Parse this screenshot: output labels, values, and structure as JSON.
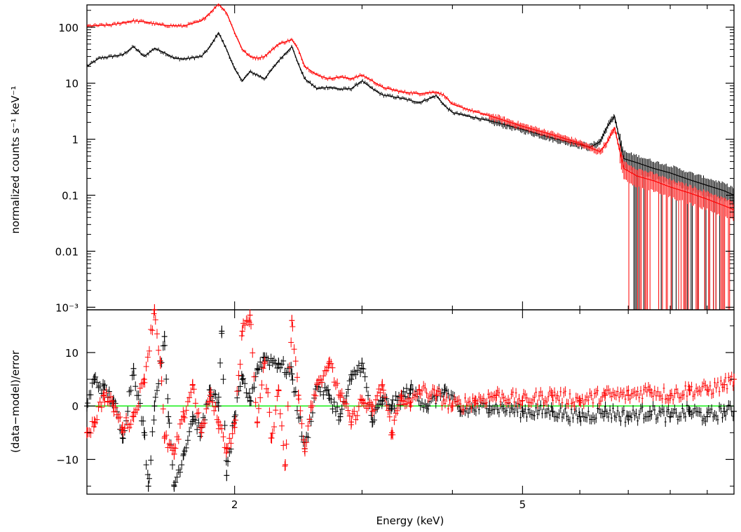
{
  "chart_data": [
    {
      "type": "line",
      "panel": "spectrum",
      "ylabel": "normalized counts s⁻¹ keV⁻¹",
      "y_log": true,
      "x_log": true,
      "xlim": [
        1.25,
        9.8
      ],
      "ylim": [
        0.0009,
        250
      ],
      "yticks": [
        {
          "value": 100,
          "label": "100"
        },
        {
          "value": 10,
          "label": "10"
        },
        {
          "value": 1,
          "label": "1"
        },
        {
          "value": 0.1,
          "label": "0.1"
        },
        {
          "value": 0.01,
          "label": "0.01"
        },
        {
          "value": 0.001,
          "label": "10⁻³"
        }
      ],
      "series": [
        {
          "color": "#ff0000",
          "x": [
            1.25,
            1.35,
            1.45,
            1.5,
            1.55,
            1.6,
            1.7,
            1.8,
            1.85,
            1.9,
            1.95,
            2.0,
            2.05,
            2.1,
            2.15,
            2.2,
            2.3,
            2.4,
            2.45,
            2.5,
            2.6,
            2.7,
            2.8,
            2.9,
            3.0,
            3.1,
            3.2,
            3.4,
            3.6,
            3.8,
            3.9,
            4.0,
            4.2,
            4.6,
            5.0,
            5.5,
            6.0,
            6.2,
            6.4,
            6.55,
            6.7,
            6.9,
            7.2,
            7.6,
            8.0,
            8.5,
            9.0,
            9.5,
            9.8
          ],
          "y": [
            105,
            110,
            130,
            125,
            115,
            108,
            105,
            130,
            180,
            260,
            180,
            80,
            40,
            30,
            28,
            30,
            50,
            60,
            40,
            20,
            14,
            12,
            13,
            12,
            14,
            11,
            8.5,
            7,
            6.5,
            7,
            6,
            4.2,
            3.4,
            2.4,
            1.7,
            1.2,
            0.85,
            0.7,
            0.6,
            0.9,
            1.6,
            0.3,
            0.22,
            0.18,
            0.14,
            0.11,
            0.085,
            0.065,
            0.055
          ]
        },
        {
          "color": "#000000",
          "x": [
            1.25,
            1.3,
            1.4,
            1.45,
            1.5,
            1.55,
            1.6,
            1.65,
            1.7,
            1.8,
            1.85,
            1.9,
            1.95,
            2.0,
            2.05,
            2.1,
            2.15,
            2.2,
            2.3,
            2.4,
            2.45,
            2.5,
            2.6,
            2.7,
            2.8,
            2.9,
            3.0,
            3.1,
            3.2,
            3.4,
            3.6,
            3.8,
            3.9,
            4.0,
            4.2,
            4.6,
            5.0,
            5.5,
            6.0,
            6.2,
            6.4,
            6.55,
            6.7,
            6.9,
            7.2,
            7.6,
            8.0,
            8.5,
            9.0,
            9.5,
            9.8
          ],
          "y": [
            20,
            28,
            32,
            45,
            30,
            42,
            35,
            28,
            27,
            30,
            45,
            80,
            40,
            18,
            11,
            16,
            14,
            12,
            25,
            45,
            22,
            12,
            8,
            8.5,
            7.8,
            8,
            11,
            8,
            6.2,
            5.4,
            4.5,
            6,
            4,
            3,
            2.6,
            2,
            1.5,
            1.05,
            0.8,
            0.72,
            0.9,
            1.7,
            2.6,
            0.45,
            0.38,
            0.3,
            0.25,
            0.19,
            0.15,
            0.12,
            0.1
          ]
        }
      ]
    },
    {
      "type": "scatter",
      "panel": "residuals",
      "ylabel": "(data−model)/error",
      "xlabel": "Energy (keV)",
      "x_log": true,
      "xlim": [
        1.25,
        9.8
      ],
      "ylim": [
        -16.5,
        18
      ],
      "yticks": [
        {
          "value": 10,
          "label": "10"
        },
        {
          "value": 0,
          "label": "0"
        },
        {
          "value": -10,
          "label": "−10"
        }
      ],
      "xticks": [
        {
          "value": 2,
          "label": "2"
        },
        {
          "value": 5,
          "label": "5"
        }
      ],
      "zero_line_color": "#00ee00",
      "series": [
        {
          "color": "#ff0000",
          "x": [
            1.25,
            1.28,
            1.32,
            1.36,
            1.4,
            1.45,
            1.5,
            1.55,
            1.58,
            1.6,
            1.65,
            1.7,
            1.75,
            1.8,
            1.85,
            1.9,
            1.95,
            2.0,
            2.05,
            2.1,
            2.15,
            2.2,
            2.25,
            2.3,
            2.35,
            2.4,
            2.45,
            2.5,
            2.55,
            2.6,
            2.7,
            2.8,
            2.9,
            3.0,
            3.1,
            3.2,
            3.3,
            3.4,
            3.5,
            3.6,
            3.8,
            4.0,
            4.3,
            4.6,
            5.0,
            5.5,
            6.0,
            6.5,
            7.0,
            7.5,
            8.0,
            8.5,
            9.0,
            9.5,
            9.8
          ],
          "y": [
            -5,
            -3,
            2,
            0,
            -4,
            -2,
            5,
            18,
            8,
            -6,
            -9,
            -2,
            4,
            -5,
            2,
            -3,
            -8,
            -4,
            14,
            17,
            -3,
            8,
            -6,
            3,
            -11,
            16,
            2,
            -8,
            0,
            4,
            8,
            2,
            -3,
            1,
            -1,
            4,
            -5,
            2,
            0,
            3,
            2,
            0,
            1,
            2,
            1,
            2,
            1,
            2,
            2,
            3,
            2,
            3,
            3,
            4,
            5
          ]
        },
        {
          "color": "#000000",
          "x": [
            1.25,
            1.28,
            1.32,
            1.36,
            1.4,
            1.45,
            1.5,
            1.52,
            1.55,
            1.6,
            1.62,
            1.65,
            1.7,
            1.75,
            1.8,
            1.85,
            1.9,
            1.92,
            1.95,
            2.0,
            2.05,
            2.1,
            2.15,
            2.2,
            2.3,
            2.4,
            2.5,
            2.6,
            2.7,
            2.8,
            2.9,
            3.0,
            3.1,
            3.2,
            3.3,
            3.5,
            3.7,
            3.9,
            4.1,
            4.5,
            5.0,
            5.5,
            6.0,
            6.5,
            7.0,
            7.5,
            8.0,
            8.5,
            9.0,
            9.5,
            9.8
          ],
          "y": [
            0,
            5,
            3,
            1,
            -6,
            7,
            -5,
            -15,
            0,
            13,
            -2,
            -15,
            -9,
            -2,
            -5,
            3,
            0,
            14,
            -13,
            -2,
            5,
            1,
            7,
            9,
            8,
            6,
            -8,
            4,
            2,
            -2,
            5,
            8,
            -3,
            1,
            0,
            3,
            0,
            3,
            -1,
            0,
            -1,
            -1,
            -2,
            -1,
            -2,
            -1,
            -2,
            -1,
            -2,
            -1,
            -1
          ]
        }
      ]
    }
  ]
}
